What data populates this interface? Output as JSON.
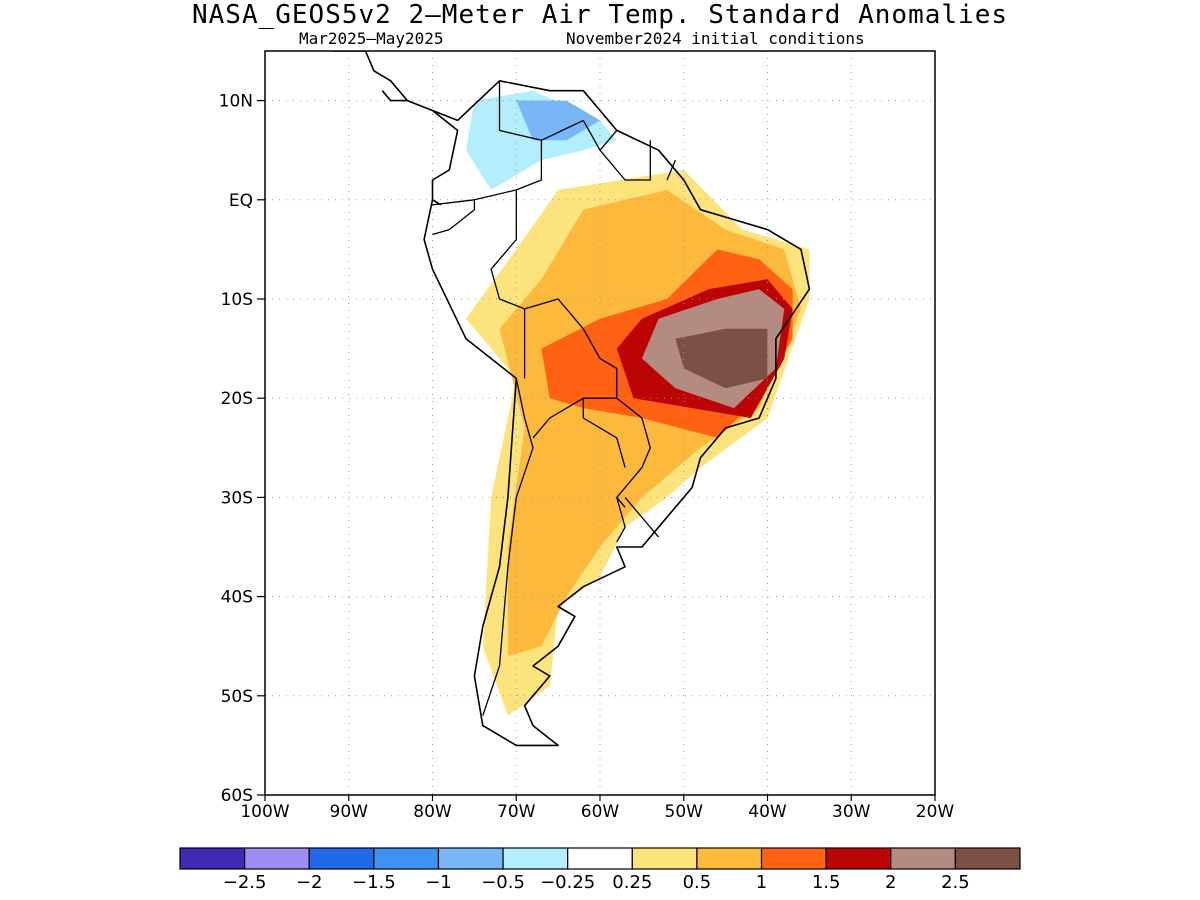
{
  "header": {
    "title": "NASA_GEOS5v2 2—Meter Air Temp. Standard Anomalies",
    "period": "Mar2025—May2025",
    "init": "November2024 initial conditions"
  },
  "map": {
    "region": "South America",
    "projection": "lat-lon",
    "lon_range": [
      -100,
      -20
    ],
    "lat_range": [
      -60,
      15
    ],
    "lat_ticks": [
      {
        "lat": 10,
        "label": "10N"
      },
      {
        "lat": 0,
        "label": "EQ"
      },
      {
        "lat": -10,
        "label": "10S"
      },
      {
        "lat": -20,
        "label": "20S"
      },
      {
        "lat": -30,
        "label": "30S"
      },
      {
        "lat": -40,
        "label": "40S"
      },
      {
        "lat": -50,
        "label": "50S"
      },
      {
        "lat": -60,
        "label": "60S"
      }
    ],
    "lon_ticks": [
      {
        "lon": -100,
        "label": "100W"
      },
      {
        "lon": -90,
        "label": "90W"
      },
      {
        "lon": -80,
        "label": "80W"
      },
      {
        "lon": -70,
        "label": "70W"
      },
      {
        "lon": -60,
        "label": "60W"
      },
      {
        "lon": -50,
        "label": "50W"
      },
      {
        "lon": -40,
        "label": "40W"
      },
      {
        "lon": -30,
        "label": "30W"
      },
      {
        "lon": -20,
        "label": "20W"
      }
    ],
    "grid": "dotted"
  },
  "colorbar": {
    "colors": [
      "#3f2ab5",
      "#9c8df2",
      "#2169e6",
      "#3d93ef",
      "#78b6f6",
      "#b2eefb",
      "#ffffff",
      "#fde37b",
      "#fdb93b",
      "#fe6212",
      "#bd0405",
      "#b38b80",
      "#7c5044"
    ],
    "labels": [
      "−2.5",
      "−2",
      "−1.5",
      "−1",
      "−0.5",
      "−0.25",
      "0.25",
      "0.5",
      "1",
      "1.5",
      "2",
      "2.5"
    ]
  },
  "anomaly_regions": [
    {
      "level": "0.5",
      "color": "#fde37b",
      "lonlat": [
        [
          -65,
          1
        ],
        [
          -50,
          3
        ],
        [
          -43,
          -3
        ],
        [
          -35,
          -5
        ],
        [
          -35,
          -10
        ],
        [
          -40,
          -22
        ],
        [
          -48,
          -27
        ],
        [
          -52,
          -30
        ],
        [
          -57,
          -33
        ],
        [
          -60,
          -38
        ],
        [
          -65,
          -41
        ],
        [
          -66,
          -49
        ],
        [
          -71,
          -52
        ],
        [
          -74,
          -45
        ],
        [
          -73,
          -30
        ],
        [
          -70,
          -18
        ],
        [
          -76,
          -12
        ],
        [
          -70,
          -5
        ]
      ]
    },
    {
      "level": "1",
      "color": "#fdb93b",
      "lonlat": [
        [
          -62,
          -1
        ],
        [
          -52,
          1
        ],
        [
          -45,
          -3
        ],
        [
          -38,
          -5
        ],
        [
          -36,
          -11
        ],
        [
          -41,
          -21
        ],
        [
          -48,
          -25
        ],
        [
          -55,
          -30
        ],
        [
          -60,
          -35
        ],
        [
          -64,
          -40
        ],
        [
          -67,
          -45
        ],
        [
          -71,
          -46
        ],
        [
          -71,
          -35
        ],
        [
          -69,
          -23
        ],
        [
          -72,
          -13
        ],
        [
          -67,
          -8
        ]
      ]
    },
    {
      "level": "1.5",
      "color": "#fe6212",
      "lonlat": [
        [
          -52,
          -10
        ],
        [
          -46,
          -5
        ],
        [
          -41,
          -6
        ],
        [
          -37,
          -9
        ],
        [
          -37,
          -14
        ],
        [
          -41,
          -20
        ],
        [
          -46,
          -24
        ],
        [
          -55,
          -22
        ],
        [
          -62,
          -21
        ],
        [
          -66,
          -20
        ],
        [
          -67,
          -15
        ],
        [
          -60,
          -12
        ]
      ]
    },
    {
      "level": "2",
      "color": "#bd0405",
      "lonlat": [
        [
          -55,
          -12
        ],
        [
          -47,
          -9
        ],
        [
          -40,
          -8
        ],
        [
          -37,
          -11
        ],
        [
          -38,
          -16
        ],
        [
          -42,
          -22
        ],
        [
          -49,
          -21
        ],
        [
          -56,
          -20
        ],
        [
          -58,
          -15
        ]
      ]
    },
    {
      "level": "2.5",
      "color": "#b38b80",
      "lonlat": [
        [
          -53,
          -12
        ],
        [
          -46,
          -10
        ],
        [
          -41,
          -9
        ],
        [
          -38,
          -11
        ],
        [
          -39,
          -17
        ],
        [
          -44,
          -21
        ],
        [
          -51,
          -19
        ],
        [
          -55,
          -16
        ]
      ]
    },
    {
      "level": "2.5+",
      "color": "#7c5044",
      "lonlat": [
        [
          -51,
          -14
        ],
        [
          -45,
          -13
        ],
        [
          -40,
          -13
        ],
        [
          -40,
          -18
        ],
        [
          -45,
          -19
        ],
        [
          -50,
          -17
        ]
      ]
    },
    {
      "level": "−0.5",
      "color": "#b2eefb",
      "lonlat": [
        [
          -75,
          10
        ],
        [
          -68,
          11
        ],
        [
          -60,
          8
        ],
        [
          -58,
          6
        ],
        [
          -62,
          5
        ],
        [
          -67,
          4
        ],
        [
          -73,
          1
        ],
        [
          -76,
          5
        ]
      ]
    },
    {
      "level": "−1",
      "color": "#78b6f6",
      "lonlat": [
        [
          -70,
          10
        ],
        [
          -64,
          10
        ],
        [
          -60,
          8
        ],
        [
          -64,
          6
        ],
        [
          -68,
          6
        ]
      ]
    }
  ],
  "coastlines": [
    [
      [
        -80,
        9
      ],
      [
        -77,
        8
      ],
      [
        -72,
        12
      ],
      [
        -66,
        11
      ],
      [
        -62,
        11
      ],
      [
        -58,
        7
      ],
      [
        -53,
        5
      ],
      [
        -50,
        2
      ],
      [
        -48,
        -1
      ],
      [
        -44,
        -2
      ],
      [
        -40,
        -3
      ],
      [
        -36,
        -5
      ],
      [
        -35,
        -9
      ],
      [
        -39,
        -14
      ],
      [
        -39,
        -18
      ],
      [
        -41,
        -22
      ],
      [
        -45,
        -23
      ],
      [
        -48,
        -26
      ],
      [
        -49,
        -29
      ],
      [
        -52,
        -32
      ],
      [
        -55,
        -35
      ],
      [
        -58,
        -35
      ],
      [
        -57,
        -37
      ],
      [
        -62,
        -39
      ],
      [
        -65,
        -41
      ],
      [
        -63,
        -42
      ],
      [
        -65,
        -45
      ],
      [
        -68,
        -47
      ],
      [
        -66,
        -48
      ],
      [
        -69,
        -51
      ],
      [
        -68,
        -53
      ],
      [
        -65,
        -55
      ],
      [
        -70,
        -55
      ],
      [
        -74,
        -53
      ],
      [
        -75,
        -48
      ],
      [
        -74,
        -43
      ],
      [
        -72,
        -37
      ],
      [
        -71,
        -30
      ],
      [
        -70,
        -18
      ],
      [
        -76,
        -14
      ],
      [
        -80,
        -7
      ],
      [
        -81,
        -4
      ],
      [
        -80,
        0
      ],
      [
        -80,
        2
      ],
      [
        -78,
        3
      ],
      [
        -77,
        7
      ],
      [
        -80,
        9
      ]
    ],
    [
      [
        -80,
        9
      ],
      [
        -83,
        10
      ],
      [
        -85,
        12
      ],
      [
        -87,
        13
      ],
      [
        -88,
        15
      ],
      [
        -92,
        15
      ]
    ],
    [
      [
        -83,
        10
      ],
      [
        -85,
        10
      ],
      [
        -86,
        11
      ]
    ],
    [
      [
        -79,
        -0.5
      ],
      [
        -80,
        0
      ]
    ]
  ],
  "borders": [
    [
      [
        -72,
        12
      ],
      [
        -72,
        7
      ],
      [
        -67,
        6
      ],
      [
        -67,
        2
      ],
      [
        -70,
        1
      ],
      [
        -70,
        -4
      ],
      [
        -73,
        -7
      ],
      [
        -72,
        -10
      ],
      [
        -69,
        -11
      ],
      [
        -65,
        -10
      ],
      [
        -62,
        -13
      ],
      [
        -60,
        -16
      ],
      [
        -58,
        -17
      ],
      [
        -58,
        -20
      ],
      [
        -55,
        -22
      ],
      [
        -54,
        -25
      ],
      [
        -55,
        -27
      ],
      [
        -58,
        -30
      ],
      [
        -57,
        -31
      ]
    ],
    [
      [
        -67,
        6
      ],
      [
        -62,
        8
      ],
      [
        -60,
        5
      ],
      [
        -58,
        7
      ]
    ],
    [
      [
        -60,
        5
      ],
      [
        -57,
        2
      ],
      [
        -54,
        2
      ],
      [
        -54,
        6
      ]
    ],
    [
      [
        -52,
        2
      ],
      [
        -51,
        4
      ]
    ],
    [
      [
        -80,
        -0.5
      ],
      [
        -75,
        0
      ],
      [
        -70,
        1
      ]
    ],
    [
      [
        -75,
        0
      ],
      [
        -75,
        -1
      ],
      [
        -78,
        -3
      ],
      [
        -80,
        -3.5
      ]
    ],
    [
      [
        -70,
        -18
      ],
      [
        -69,
        -22
      ],
      [
        -68,
        -25
      ],
      [
        -70,
        -30
      ],
      [
        -71,
        -37
      ],
      [
        -72,
        -47
      ],
      [
        -74,
        -52
      ]
    ],
    [
      [
        -69,
        -11
      ],
      [
        -69,
        -18
      ]
    ],
    [
      [
        -62,
        -20
      ],
      [
        -66,
        -22
      ],
      [
        -68,
        -24
      ]
    ],
    [
      [
        -58,
        -20
      ],
      [
        -62,
        -20
      ],
      [
        -62,
        -22
      ],
      [
        -58,
        -24
      ],
      [
        -57,
        -27
      ]
    ],
    [
      [
        -58,
        -30
      ],
      [
        -57,
        -33
      ],
      [
        -58,
        -34.5
      ]
    ],
    [
      [
        -53,
        -34
      ],
      [
        -57,
        -30
      ]
    ]
  ]
}
